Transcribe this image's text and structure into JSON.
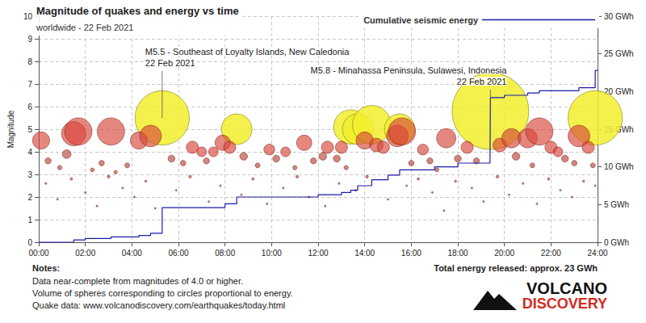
{
  "chart_data": {
    "type": "scatter",
    "title": "Magnitude of quakes and energy vs time",
    "subtitle": "worldwide - 22 Feb 2021",
    "y_label": "Magnitude",
    "xlim": [
      0,
      24
    ],
    "xticks": [
      {
        "value": 0,
        "label": "00:00"
      },
      {
        "value": 2,
        "label": "02:00"
      },
      {
        "value": 4,
        "label": "04:00"
      },
      {
        "value": 6,
        "label": "06:00"
      },
      {
        "value": 8,
        "label": "08:00"
      },
      {
        "value": 10,
        "label": "10:00"
      },
      {
        "value": 12,
        "label": "12:00"
      },
      {
        "value": 14,
        "label": "14:00"
      },
      {
        "value": 16,
        "label": "16:00"
      },
      {
        "value": 18,
        "label": "18:00"
      },
      {
        "value": 20,
        "label": "20:00"
      },
      {
        "value": 22,
        "label": "22:00"
      },
      {
        "value": 24,
        "label": "24:00"
      }
    ],
    "ylim": [
      0,
      10
    ],
    "yticks": [
      0,
      1,
      2,
      3,
      4,
      5,
      6,
      7,
      8,
      9,
      10
    ],
    "y2lim": [
      0,
      30
    ],
    "y2ticks": [
      {
        "value": 0,
        "label": "0 GWh"
      },
      {
        "value": 5,
        "label": "5 GWh"
      },
      {
        "value": 10,
        "label": "10 GWh"
      },
      {
        "value": 15,
        "label": "15 GWh"
      },
      {
        "value": 20,
        "label": "20 GWh"
      },
      {
        "value": 25,
        "label": "25 GWh"
      },
      {
        "value": 30,
        "label": "30 GWh"
      }
    ],
    "grid": true,
    "legend": "top-right",
    "series": [
      {
        "type": "scatter",
        "marker": "circle",
        "color": "#f2ee2e",
        "x": [
          5.3,
          8.5,
          13.4,
          13.7,
          14.3,
          15.5,
          19.4,
          23.9
        ],
        "values": [
          5.5,
          5.0,
          5.1,
          5.0,
          5.2,
          5.0,
          5.8,
          5.5
        ]
      },
      {
        "type": "scatter",
        "marker": "circle",
        "color": "#d9463a",
        "x": [
          0.1,
          1.5,
          1.7,
          3.1,
          4.3,
          4.8,
          6.6,
          7.0,
          7.5,
          7.9,
          8.2,
          9.9,
          10.6,
          11.4,
          12.4,
          13.0,
          14.0,
          14.5,
          14.8,
          15.4,
          15.6,
          16.5,
          17.5,
          18.4,
          19.8,
          20.3,
          21.0,
          21.5,
          22.0,
          22.3,
          23.2,
          23.6
        ],
        "values": [
          4.5,
          4.8,
          4.9,
          4.9,
          4.5,
          4.7,
          4.2,
          4.0,
          4.0,
          4.4,
          4.2,
          4.1,
          4.0,
          4.4,
          4.2,
          4.2,
          4.5,
          4.3,
          4.2,
          4.7,
          4.9,
          4.1,
          4.6,
          4.2,
          4.3,
          4.6,
          4.6,
          4.9,
          4.2,
          4.0,
          4.7,
          4.2
        ]
      },
      {
        "type": "scatter",
        "marker": "circle",
        "color": "#b5483b",
        "x": [
          0.4,
          0.9,
          1.2,
          2.3,
          2.7,
          3.3,
          3.8,
          5.7,
          6.2,
          7.2,
          8.8,
          9.4,
          10.2,
          11.0,
          11.8,
          12.2,
          12.8,
          13.2,
          16.0,
          16.8,
          17.1,
          18.0,
          18.8,
          20.5,
          21.2,
          22.6,
          23.0,
          23.8,
          0.3,
          0.8,
          1.4,
          2.0,
          2.5,
          3.0,
          3.6,
          4.1,
          4.6,
          5.0,
          5.9,
          6.5,
          7.3,
          7.8,
          8.7,
          9.2,
          9.8,
          10.5,
          11.1,
          11.6,
          12.3,
          12.9,
          13.6,
          14.1,
          15.0,
          15.8,
          16.3,
          16.9,
          17.4,
          17.9,
          18.6,
          19.1,
          19.7,
          20.2,
          20.8,
          21.4,
          21.9,
          22.4,
          22.9,
          23.4,
          23.9
        ],
        "values": [
          3.6,
          3.3,
          3.9,
          3.2,
          3.5,
          3.1,
          3.4,
          3.7,
          3.5,
          3.6,
          3.8,
          3.4,
          3.7,
          3.3,
          3.6,
          3.8,
          3.7,
          3.3,
          3.5,
          3.6,
          3.2,
          3.7,
          3.6,
          3.8,
          3.4,
          3.7,
          3.5,
          3.4,
          2.6,
          1.9,
          2.8,
          2.2,
          1.6,
          2.9,
          2.4,
          2.0,
          2.7,
          1.5,
          2.3,
          2.9,
          1.8,
          2.5,
          2.1,
          2.8,
          1.7,
          2.4,
          2.9,
          2.0,
          1.6,
          2.6,
          2.3,
          2.9,
          1.9,
          2.5,
          2.8,
          2.2,
          1.4,
          2.7,
          2.4,
          1.8,
          2.9,
          2.1,
          2.6,
          1.7,
          2.8,
          2.3,
          2.0,
          2.7,
          2.5
        ]
      },
      {
        "type": "line",
        "name": "Cumulative seismic energy",
        "axis": "y2",
        "color": "#1a1aa8",
        "line_style": "step",
        "x": [
          0,
          1.5,
          2.0,
          3.1,
          4.3,
          4.8,
          5.3,
          8.0,
          8.5,
          12.0,
          13.0,
          13.4,
          13.7,
          14.3,
          15.0,
          15.5,
          17.0,
          18.0,
          19.38,
          19.4,
          20.0,
          21.0,
          21.5,
          23.2,
          23.9,
          24.0
        ],
        "values": [
          0,
          0.3,
          0.5,
          0.7,
          0.9,
          1.2,
          4.6,
          5.1,
          6.0,
          6.3,
          6.6,
          6.9,
          7.5,
          8.3,
          8.9,
          9.6,
          10.0,
          10.5,
          11.0,
          19.2,
          19.5,
          19.8,
          20.1,
          20.5,
          22.8,
          22.8
        ]
      }
    ],
    "annotations": [
      {
        "text": "M5.5 - Southeast of Loyalty Islands, New Caledonia",
        "date": "22 Feb 2021",
        "x": 5.3,
        "y": 5.5
      },
      {
        "text": "M5.8 - Minahassa Peninsula, Sulawesi, Indonesia",
        "date": "22 Feb 2021",
        "x": 19.4,
        "y": 5.8
      }
    ],
    "notes_title": "Notes:",
    "notes": [
      "Data near-complete from magnitudes of 4.0 or higher.",
      "Volume of spheres corresponding to circles proportional to energy.",
      "Quake data: www.volcanodiscovery.com/earthquakes/today.html"
    ],
    "total": "Total energy released: approx. 23 GWh",
    "logo": [
      "VOLCANO",
      "DISCOVERY"
    ]
  }
}
